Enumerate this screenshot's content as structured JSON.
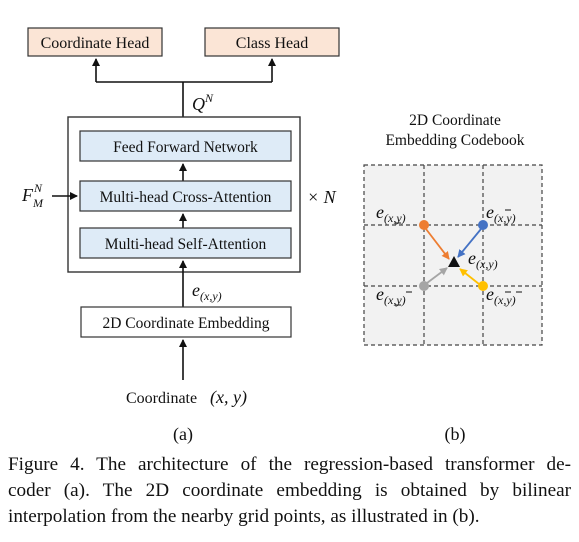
{
  "panel_a": {
    "heads": {
      "coordinate_head": "Coordinate Head",
      "class_head": "Class Head"
    },
    "query_label": {
      "base": "Q",
      "sup": "N"
    },
    "blocks": {
      "ffn": "Feed Forward Network",
      "cross_attention": "Multi-head Cross-Attention",
      "self_attention": "Multi-head Self-Attention"
    },
    "feature_input": {
      "base": "F",
      "sup": "N",
      "sub": "M"
    },
    "repeat_label": "× N",
    "embedding_label": {
      "base": "e",
      "sub": "(x,y)"
    },
    "embedding_block": "2D Coordinate Embedding",
    "coordinate_input": {
      "text": "Coordinate",
      "math": "(x, y)"
    },
    "panel_label": "(a)"
  },
  "panel_b": {
    "title_line1": "2D Coordinate",
    "title_line2": "Embedding Codebook",
    "labels": {
      "top_left": {
        "base": "e",
        "sub": "(x,y)"
      },
      "top_right": {
        "base": "e",
        "sub": "(x,y)"
      },
      "center": {
        "base": "e",
        "sub": "(x,y)"
      },
      "bottom_left": {
        "base": "e",
        "sub": "(x,y)"
      },
      "bottom_right": {
        "base": "e",
        "sub": "(x,y)"
      }
    },
    "point_colors": {
      "top_left": "#ED7D31",
      "top_right": "#4472C4",
      "bottom_left": "#A5A5A5",
      "bottom_right": "#FFC000"
    },
    "panel_label": "(b)"
  },
  "colors": {
    "head_fill": "#FBE5D6",
    "block_fill": "#DEEBF7",
    "codebook_fill": "#F2F2F2"
  },
  "caption": {
    "line1": "Figure 4. The architecture of the regression-based transformer de-",
    "line2": "coder (a). The 2D coordinate embedding is obtained by bilinear",
    "line3": "interpolation from the nearby grid points, as illustrated in (b)."
  }
}
